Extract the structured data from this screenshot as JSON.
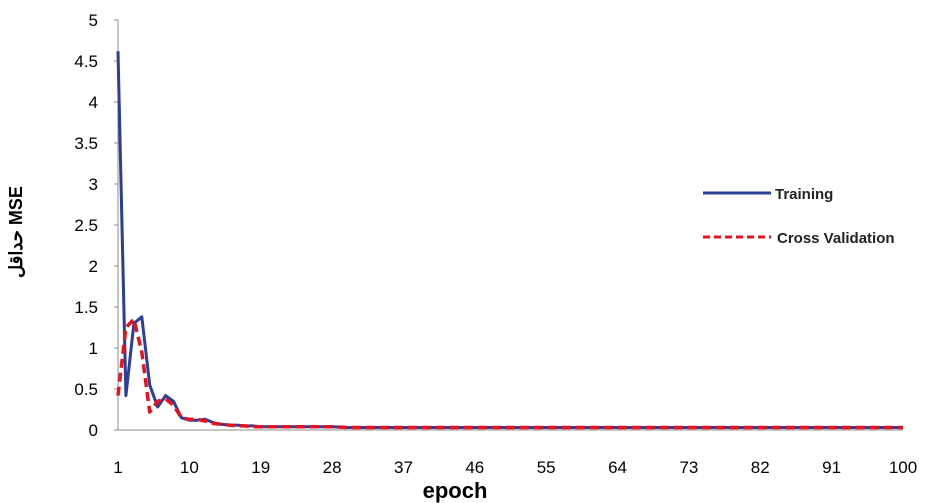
{
  "chart_data": {
    "type": "line",
    "title": "",
    "xlabel": "epoch",
    "ylabel": "حداقل MSE",
    "xlim": [
      1,
      100
    ],
    "ylim": [
      0,
      5
    ],
    "x_ticks": [
      1,
      10,
      19,
      28,
      37,
      46,
      55,
      64,
      73,
      82,
      91,
      100
    ],
    "y_ticks": [
      "0",
      "0.5",
      "1",
      "1.5",
      "2",
      "2.5",
      "3",
      "3.5",
      "4",
      "4.5",
      "5"
    ],
    "grid": false,
    "legend_position": "right",
    "x": [
      1,
      2,
      3,
      4,
      5,
      6,
      7,
      8,
      9,
      10,
      11,
      12,
      13,
      14,
      15,
      16,
      17,
      18,
      19,
      20,
      22,
      25,
      28,
      30,
      35,
      40,
      50,
      60,
      70,
      80,
      90,
      100
    ],
    "series": [
      {
        "name": "Training",
        "color": "#2b3f99",
        "style": "solid",
        "values": [
          4.62,
          0.42,
          1.3,
          1.38,
          0.55,
          0.28,
          0.42,
          0.35,
          0.15,
          0.12,
          0.12,
          0.13,
          0.09,
          0.07,
          0.06,
          0.06,
          0.05,
          0.05,
          0.04,
          0.04,
          0.04,
          0.04,
          0.04,
          0.03,
          0.03,
          0.03,
          0.03,
          0.03,
          0.03,
          0.03,
          0.03,
          0.03
        ]
      },
      {
        "name": "Cross Validation",
        "color": "#e8121f",
        "style": "dashed",
        "values": [
          0.42,
          1.25,
          1.35,
          0.95,
          0.22,
          0.35,
          0.38,
          0.3,
          0.15,
          0.13,
          0.13,
          0.11,
          0.08,
          0.07,
          0.06,
          0.05,
          0.05,
          0.04,
          0.04,
          0.04,
          0.04,
          0.04,
          0.04,
          0.03,
          0.03,
          0.03,
          0.03,
          0.03,
          0.03,
          0.03,
          0.03,
          0.03
        ]
      }
    ]
  }
}
